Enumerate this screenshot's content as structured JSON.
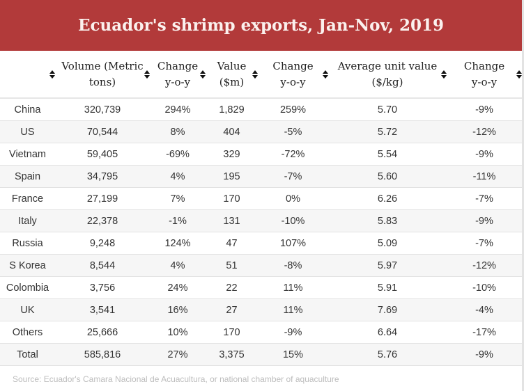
{
  "chart_data": {
    "type": "table",
    "title": "Ecuador's shrimp exports, Jan-Nov, 2019",
    "columns": [
      "",
      "Volume (Metric tons)",
      "Change y-o-y",
      "Value ($m)",
      "Change y-o-y",
      "Average unit value ($/kg)",
      "Change y-o-y"
    ],
    "header_lines": [
      [
        "",
        ""
      ],
      [
        "Volume (Metric",
        "tons)"
      ],
      [
        "Change",
        "y-o-y"
      ],
      [
        "Value",
        "($m)"
      ],
      [
        "Change",
        "y-o-y"
      ],
      [
        "Average unit value",
        "($/kg)"
      ],
      [
        "Change",
        "y-o-y"
      ]
    ],
    "rows": [
      [
        "China",
        "320,739",
        "294%",
        "1,829",
        "259%",
        "5.70",
        "-9%"
      ],
      [
        "US",
        "70,544",
        "8%",
        "404",
        "-5%",
        "5.72",
        "-12%"
      ],
      [
        "Vietnam",
        "59,405",
        "-69%",
        "329",
        "-72%",
        "5.54",
        "-9%"
      ],
      [
        "Spain",
        "34,795",
        "4%",
        "195",
        "-7%",
        "5.60",
        "-11%"
      ],
      [
        "France",
        "27,199",
        "7%",
        "170",
        "0%",
        "6.26",
        "-7%"
      ],
      [
        "Italy",
        "22,378",
        "-1%",
        "131",
        "-10%",
        "5.83",
        "-9%"
      ],
      [
        "Russia",
        "9,248",
        "124%",
        "47",
        "107%",
        "5.09",
        "-7%"
      ],
      [
        "S Korea",
        "8,544",
        "4%",
        "51",
        "-8%",
        "5.97",
        "-12%"
      ],
      [
        "Colombia",
        "3,756",
        "24%",
        "22",
        "11%",
        "5.91",
        "-10%"
      ],
      [
        "UK",
        "3,541",
        "16%",
        "27",
        "11%",
        "7.69",
        "-4%"
      ],
      [
        "Others",
        "25,666",
        "10%",
        "170",
        "-9%",
        "6.64",
        "-17%"
      ],
      [
        "Total",
        "585,816",
        "27%",
        "3,375",
        "15%",
        "5.76",
        "-9%"
      ]
    ],
    "source": "Source: Ecuador's Camara Nacional de Acuacultura, or national chamber of aquaculture"
  },
  "colors": {
    "title_bg": "#b23a3a",
    "title_text": "#fbf1ee",
    "stripe": "#f6f6f6",
    "source_text": "#bdbdbd"
  },
  "icons": {
    "sort": "sort-up-down-icon"
  }
}
